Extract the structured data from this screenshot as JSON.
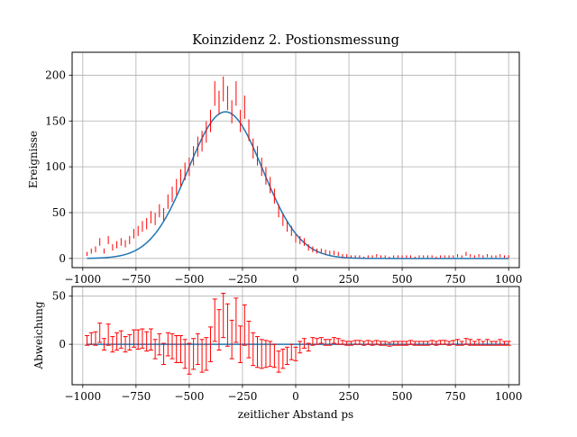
{
  "chart_data": [
    {
      "type": "scatter",
      "panel": "top",
      "title": "Koinzidenz 2. Postionsmessung",
      "xlabel": "",
      "ylabel": "Ereignisse",
      "xlim": [
        -1050,
        1050
      ],
      "ylim": [
        -10,
        225
      ],
      "grid": true,
      "x_ticks": [
        -1000,
        -750,
        -500,
        -250,
        0,
        250,
        500,
        750,
        1000
      ],
      "x_tick_labels": [
        "−1000",
        "−750",
        "−500",
        "−250",
        "0",
        "250",
        "500",
        "750",
        "1000"
      ],
      "y_ticks": [
        0,
        50,
        100,
        150,
        200
      ],
      "y_tick_labels": [
        "0",
        "50",
        "100",
        "150",
        "200"
      ],
      "series": [
        {
          "kind": "errorbar",
          "color": "#ff0000",
          "x": [
            -980,
            -960,
            -940,
            -920,
            -900,
            -880,
            -860,
            -840,
            -820,
            -800,
            -780,
            -760,
            -740,
            -720,
            -700,
            -680,
            -660,
            -640,
            -620,
            -600,
            -580,
            -560,
            -540,
            -520,
            -500,
            -480,
            -460,
            -440,
            -420,
            -400,
            -380,
            -360,
            -340,
            -320,
            -300,
            -280,
            -260,
            -240,
            -220,
            -200,
            -180,
            -160,
            -140,
            -120,
            -100,
            -80,
            -60,
            -40,
            -20,
            0,
            20,
            40,
            60,
            80,
            100,
            120,
            140,
            160,
            180,
            200,
            220,
            240,
            260,
            280,
            300,
            320,
            340,
            360,
            380,
            400,
            420,
            440,
            460,
            480,
            500,
            520,
            540,
            560,
            580,
            600,
            620,
            640,
            660,
            680,
            700,
            720,
            740,
            760,
            780,
            800,
            820,
            840,
            860,
            880,
            900,
            920,
            940,
            960,
            980,
            1000
          ],
          "y": [
            5,
            8,
            10,
            18,
            8,
            20,
            12,
            15,
            18,
            16,
            20,
            27,
            30,
            35,
            38,
            45,
            43,
            52,
            48,
            62,
            70,
            78,
            88,
            95,
            100,
            112,
            122,
            128,
            138,
            150,
            180,
            170,
            185,
            175,
            160,
            180,
            150,
            165,
            140,
            120,
            112,
            100,
            90,
            80,
            68,
            52,
            42,
            35,
            30,
            22,
            20,
            18,
            12,
            10,
            8,
            8,
            7,
            6,
            6,
            5,
            3,
            3,
            2,
            2,
            2,
            1,
            2,
            2,
            3,
            2,
            2,
            1,
            2,
            2,
            2,
            2,
            2,
            1,
            2,
            2,
            2,
            2,
            1,
            2,
            2,
            2,
            2,
            3,
            2,
            5,
            3,
            2,
            3,
            2,
            3,
            2,
            2,
            3,
            2,
            2
          ],
          "yerr": [
            2.2,
            2.8,
            3.2,
            4.2,
            2.8,
            4.5,
            3.5,
            3.9,
            4.2,
            4,
            4.5,
            5.2,
            5.5,
            5.9,
            6.2,
            6.7,
            6.6,
            7.2,
            6.9,
            7.9,
            8.4,
            8.8,
            9.4,
            9.7,
            10,
            10.6,
            11,
            11.3,
            11.7,
            12.2,
            13.4,
            13,
            13.6,
            13.2,
            12.6,
            13.4,
            12.2,
            12.8,
            11.8,
            11,
            10.6,
            10,
            9.5,
            8.9,
            8.2,
            7.2,
            6.5,
            5.9,
            5.5,
            4.7,
            4.5,
            4.2,
            3.5,
            3.2,
            2.8,
            2.8,
            2.6,
            2.4,
            2.4,
            2.2,
            1.7,
            1.7,
            1.4,
            1.4,
            1.4,
            1,
            1.4,
            1.4,
            1.7,
            1.4,
            1.4,
            1,
            1.4,
            1.4,
            1.4,
            1.4,
            1.4,
            1,
            1.4,
            1.4,
            1.4,
            1.4,
            1,
            1.4,
            1.4,
            1.4,
            1.4,
            1.7,
            1.4,
            2.2,
            1.7,
            1.4,
            1.7,
            1.4,
            1.7,
            1.4,
            1.4,
            1.7,
            1.4,
            1.4
          ]
        },
        {
          "kind": "fit-line",
          "color": "#1f77b4",
          "model": "gaussian",
          "amplitude": 160,
          "center": -330,
          "sigma": 175
        }
      ]
    },
    {
      "type": "scatter",
      "panel": "bottom",
      "title": "",
      "xlabel": "zeitlicher Abstand ps",
      "ylabel": "Abweichung",
      "xlim": [
        -1050,
        1050
      ],
      "ylim": [
        -42,
        60
      ],
      "grid": true,
      "x_ticks": [
        -1000,
        -750,
        -500,
        -250,
        0,
        250,
        500,
        750,
        1000
      ],
      "x_tick_labels": [
        "−1000",
        "−750",
        "−500",
        "−250",
        "0",
        "250",
        "500",
        "750",
        "1000"
      ],
      "y_ticks": [
        0,
        50
      ],
      "y_tick_labels": [
        "0",
        "50"
      ],
      "series": [
        {
          "kind": "errorbar",
          "color": "#ff0000",
          "x": [
            -980,
            -960,
            -940,
            -920,
            -900,
            -880,
            -860,
            -840,
            -820,
            -800,
            -780,
            -760,
            -740,
            -720,
            -700,
            -680,
            -660,
            -640,
            -620,
            -600,
            -580,
            -560,
            -540,
            -520,
            -500,
            -480,
            -460,
            -440,
            -420,
            -400,
            -380,
            -360,
            -340,
            -320,
            -300,
            -280,
            -260,
            -240,
            -220,
            -200,
            -180,
            -160,
            -140,
            -120,
            -100,
            -80,
            -60,
            -40,
            -20,
            0,
            20,
            40,
            60,
            80,
            100,
            120,
            140,
            160,
            180,
            200,
            220,
            240,
            260,
            280,
            300,
            320,
            340,
            360,
            380,
            400,
            420,
            440,
            460,
            480,
            500,
            520,
            540,
            560,
            580,
            600,
            620,
            640,
            660,
            680,
            700,
            720,
            740,
            760,
            780,
            800,
            820,
            840,
            860,
            880,
            900,
            920,
            940,
            960,
            980,
            1000
          ],
          "y": [
            4,
            6,
            6,
            12,
            0,
            10,
            0,
            3,
            5,
            0,
            2,
            6,
            5,
            6,
            3,
            5,
            -5,
            0,
            -10,
            0,
            -2,
            -5,
            -5,
            -10,
            -15,
            -10,
            -5,
            -12,
            -10,
            0,
            25,
            15,
            30,
            20,
            5,
            25,
            0,
            20,
            5,
            -5,
            -8,
            -10,
            -10,
            -10,
            -12,
            -18,
            -15,
            -12,
            -8,
            -10,
            -3,
            1,
            -3,
            3,
            3,
            4,
            2,
            2,
            4,
            3,
            2,
            1,
            1,
            2,
            2,
            1,
            2,
            1,
            2,
            1,
            1,
            0,
            1,
            1,
            1,
            1,
            2,
            1,
            1,
            1,
            1,
            2,
            1,
            2,
            2,
            1,
            2,
            2,
            1,
            3,
            2,
            1,
            2,
            1,
            2,
            1,
            1,
            2,
            1,
            1
          ],
          "yerr": [
            5,
            6,
            7,
            10,
            6,
            11,
            8,
            9,
            9,
            8,
            8,
            9,
            10,
            10,
            10,
            11,
            10,
            11,
            11,
            12,
            13,
            14,
            14,
            15,
            16,
            16,
            16,
            17,
            17,
            18,
            22,
            21,
            23,
            22,
            20,
            23,
            19,
            21,
            19,
            17,
            16,
            15,
            14,
            13,
            12,
            11,
            10,
            9,
            8,
            7,
            6,
            5,
            4,
            4,
            3,
            3,
            3,
            3,
            3,
            3,
            2,
            2,
            2,
            2,
            2,
            2,
            2,
            2,
            2,
            2,
            2,
            2,
            2,
            2,
            2,
            2,
            2,
            2,
            2,
            2,
            2,
            2,
            2,
            2,
            2,
            2,
            2,
            3,
            2,
            3,
            3,
            2,
            3,
            2,
            3,
            2,
            2,
            3,
            2,
            2
          ]
        },
        {
          "kind": "zero-line",
          "color": "#1f77b4",
          "y": 0
        }
      ]
    }
  ]
}
